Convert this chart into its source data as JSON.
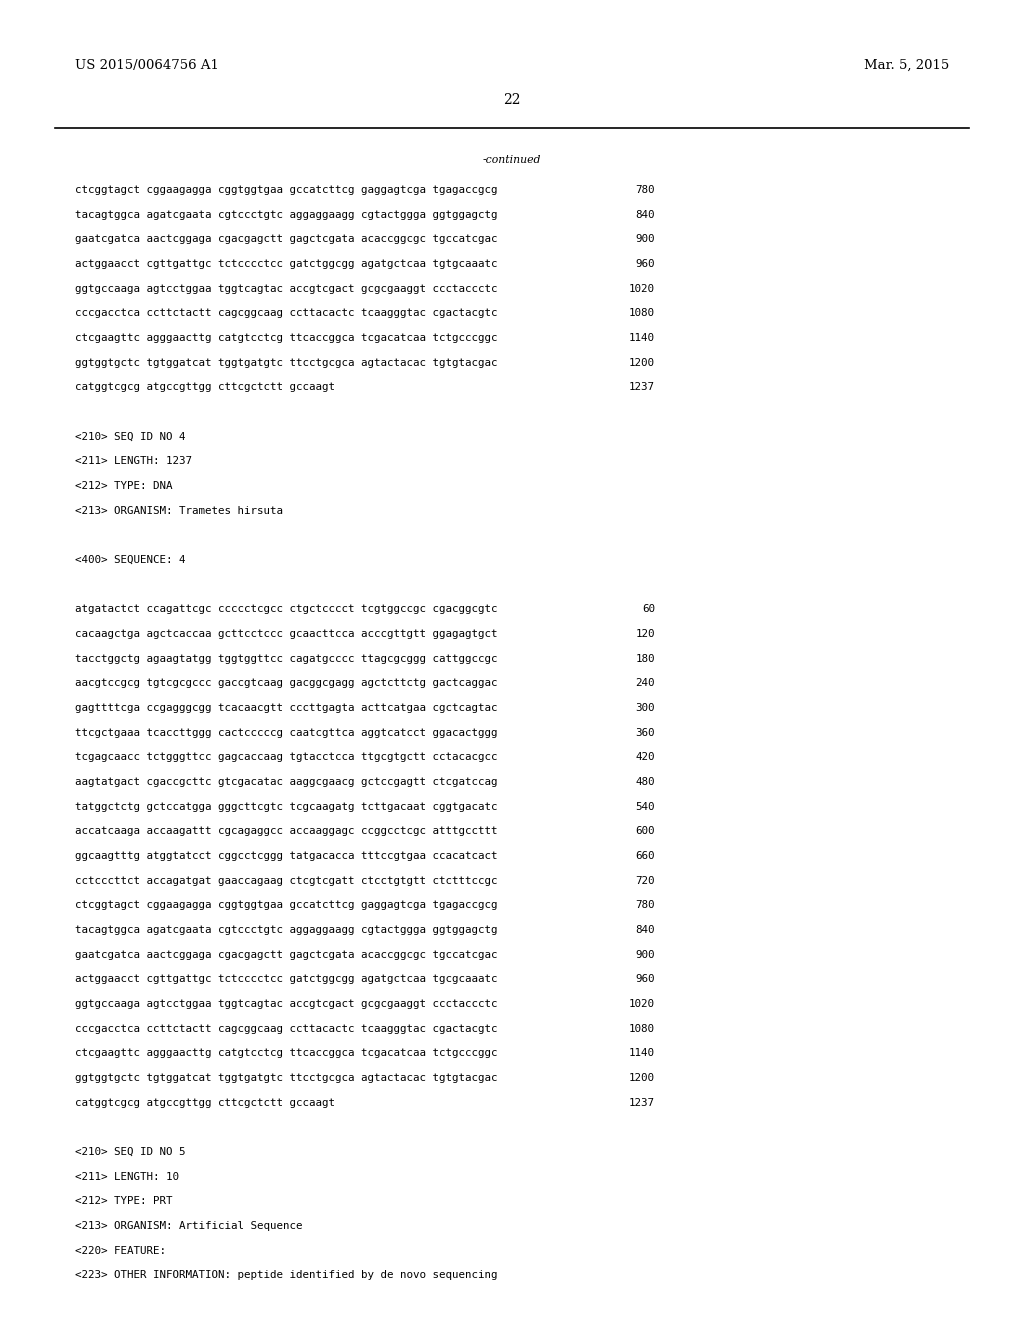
{
  "background_color": "#ffffff",
  "header_left": "US 2015/0064756 A1",
  "header_right": "Mar. 5, 2015",
  "page_number": "22",
  "continued_label": "-continued",
  "font_size_header": 9.5,
  "font_size_body": 7.8,
  "font_size_page": 10,
  "content_lines": [
    {
      "text": "ctcggtagct cggaagagga cggtggtgaa gccatcttcg gaggagtcga tgagaccgcg",
      "num": "780",
      "type": "seq"
    },
    {
      "text": "tacagtggca agatcgaata cgtccctgtc aggaggaagg cgtactggga ggtggagctg",
      "num": "840",
      "type": "seq"
    },
    {
      "text": "gaatcgatca aactcggaga cgacgagctt gagctcgata acaccggcgc tgccatcgac",
      "num": "900",
      "type": "seq"
    },
    {
      "text": "actggaacct cgttgattgc tctcccctcc gatctggcgg agatgctcaa tgtgcaaatc",
      "num": "960",
      "type": "seq"
    },
    {
      "text": "ggtgccaaga agtcctggaa tggtcagtac accgtcgact gcgcgaaggt ccctaccctc",
      "num": "1020",
      "type": "seq"
    },
    {
      "text": "cccgacctca ccttctactt cagcggcaag ccttacactc tcaagggtac cgactacgtc",
      "num": "1080",
      "type": "seq"
    },
    {
      "text": "ctcgaagttc agggaacttg catgtcctcg ttcaccggca tcgacatcaa tctgcccggc",
      "num": "1140",
      "type": "seq"
    },
    {
      "text": "ggtggtgctc tgtggatcat tggtgatgtc ttcctgcgca agtactacac tgtgtacgac",
      "num": "1200",
      "type": "seq"
    },
    {
      "text": "catggtcgcg atgccgttgg cttcgctctt gccaagt",
      "num": "1237",
      "type": "seq"
    },
    {
      "text": "",
      "num": "",
      "type": "blank"
    },
    {
      "text": "<210> SEQ ID NO 4",
      "num": "",
      "type": "meta"
    },
    {
      "text": "<211> LENGTH: 1237",
      "num": "",
      "type": "meta"
    },
    {
      "text": "<212> TYPE: DNA",
      "num": "",
      "type": "meta"
    },
    {
      "text": "<213> ORGANISM: Trametes hirsuta",
      "num": "",
      "type": "meta"
    },
    {
      "text": "",
      "num": "",
      "type": "blank"
    },
    {
      "text": "<400> SEQUENCE: 4",
      "num": "",
      "type": "meta"
    },
    {
      "text": "",
      "num": "",
      "type": "blank"
    },
    {
      "text": "atgatactct ccagattcgc ccccctcgcc ctgctcccct tcgtggccgc cgacggcgtc",
      "num": "60",
      "type": "seq"
    },
    {
      "text": "cacaagctga agctcaccaa gcttcctccc gcaacttcca acccgttgtt ggagagtgct",
      "num": "120",
      "type": "seq"
    },
    {
      "text": "tacctggctg agaagtatgg tggtggttcc cagatgcccc ttagcgcggg cattggccgc",
      "num": "180",
      "type": "seq"
    },
    {
      "text": "aacgtccgcg tgtcgcgccc gaccgtcaag gacggcgagg agctcttctg gactcaggac",
      "num": "240",
      "type": "seq"
    },
    {
      "text": "gagttttcga ccgagggcgg tcacaacgtt cccttgagta acttcatgaa cgctcagtac",
      "num": "300",
      "type": "seq"
    },
    {
      "text": "ttcgctgaaa tcaccttggg cactcccccg caatcgttca aggtcatcct ggacactggg",
      "num": "360",
      "type": "seq"
    },
    {
      "text": "tcgagcaacc tctgggttcc gagcaccaag tgtacctcca ttgcgtgctt cctacacgcc",
      "num": "420",
      "type": "seq"
    },
    {
      "text": "aagtatgact cgaccgcttc gtcgacatac aaggcgaacg gctccgagtt ctcgatccag",
      "num": "480",
      "type": "seq"
    },
    {
      "text": "tatggctctg gctccatgga gggcttcgtc tcgcaagatg tcttgacaat cggtgacatc",
      "num": "540",
      "type": "seq"
    },
    {
      "text": "accatcaaga accaagattt cgcagaggcc accaaggagc ccggcctcgc atttgccttt",
      "num": "600",
      "type": "seq"
    },
    {
      "text": "ggcaagtttg atggtatcct cggcctcggg tatgacacca tttccgtgaa ccacatcact",
      "num": "660",
      "type": "seq"
    },
    {
      "text": "cctcccttct accagatgat gaaccagaag ctcgtcgatt ctcctgtgtt ctctttccgc",
      "num": "720",
      "type": "seq"
    },
    {
      "text": "ctcggtagct cggaagagga cggtggtgaa gccatcttcg gaggagtcga tgagaccgcg",
      "num": "780",
      "type": "seq"
    },
    {
      "text": "tacagtggca agatcgaata cgtccctgtc aggaggaagg cgtactggga ggtggagctg",
      "num": "840",
      "type": "seq"
    },
    {
      "text": "gaatcgatca aactcggaga cgacgagctt gagctcgata acaccggcgc tgccatcgac",
      "num": "900",
      "type": "seq"
    },
    {
      "text": "actggaacct cgttgattgc tctcccctcc gatctggcgg agatgctcaa tgcgcaaatc",
      "num": "960",
      "type": "seq"
    },
    {
      "text": "ggtgccaaga agtcctggaa tggtcagtac accgtcgact gcgcgaaggt ccctaccctc",
      "num": "1020",
      "type": "seq"
    },
    {
      "text": "cccgacctca ccttctactt cagcggcaag ccttacactc tcaagggtac cgactacgtc",
      "num": "1080",
      "type": "seq"
    },
    {
      "text": "ctcgaagttc agggaacttg catgtcctcg ttcaccggca tcgacatcaa tctgcccggc",
      "num": "1140",
      "type": "seq"
    },
    {
      "text": "ggtggtgctc tgtggatcat tggtgatgtc ttcctgcgca agtactacac tgtgtacgac",
      "num": "1200",
      "type": "seq"
    },
    {
      "text": "catggtcgcg atgccgttgg cttcgctctt gccaagt",
      "num": "1237",
      "type": "seq"
    },
    {
      "text": "",
      "num": "",
      "type": "blank"
    },
    {
      "text": "<210> SEQ ID NO 5",
      "num": "",
      "type": "meta"
    },
    {
      "text": "<211> LENGTH: 10",
      "num": "",
      "type": "meta"
    },
    {
      "text": "<212> TYPE: PRT",
      "num": "",
      "type": "meta"
    },
    {
      "text": "<213> ORGANISM: Artificial Sequence",
      "num": "",
      "type": "meta"
    },
    {
      "text": "<220> FEATURE:",
      "num": "",
      "type": "meta"
    },
    {
      "text": "<223> OTHER INFORMATION: peptide identified by de novo sequencing",
      "num": "",
      "type": "meta"
    }
  ]
}
